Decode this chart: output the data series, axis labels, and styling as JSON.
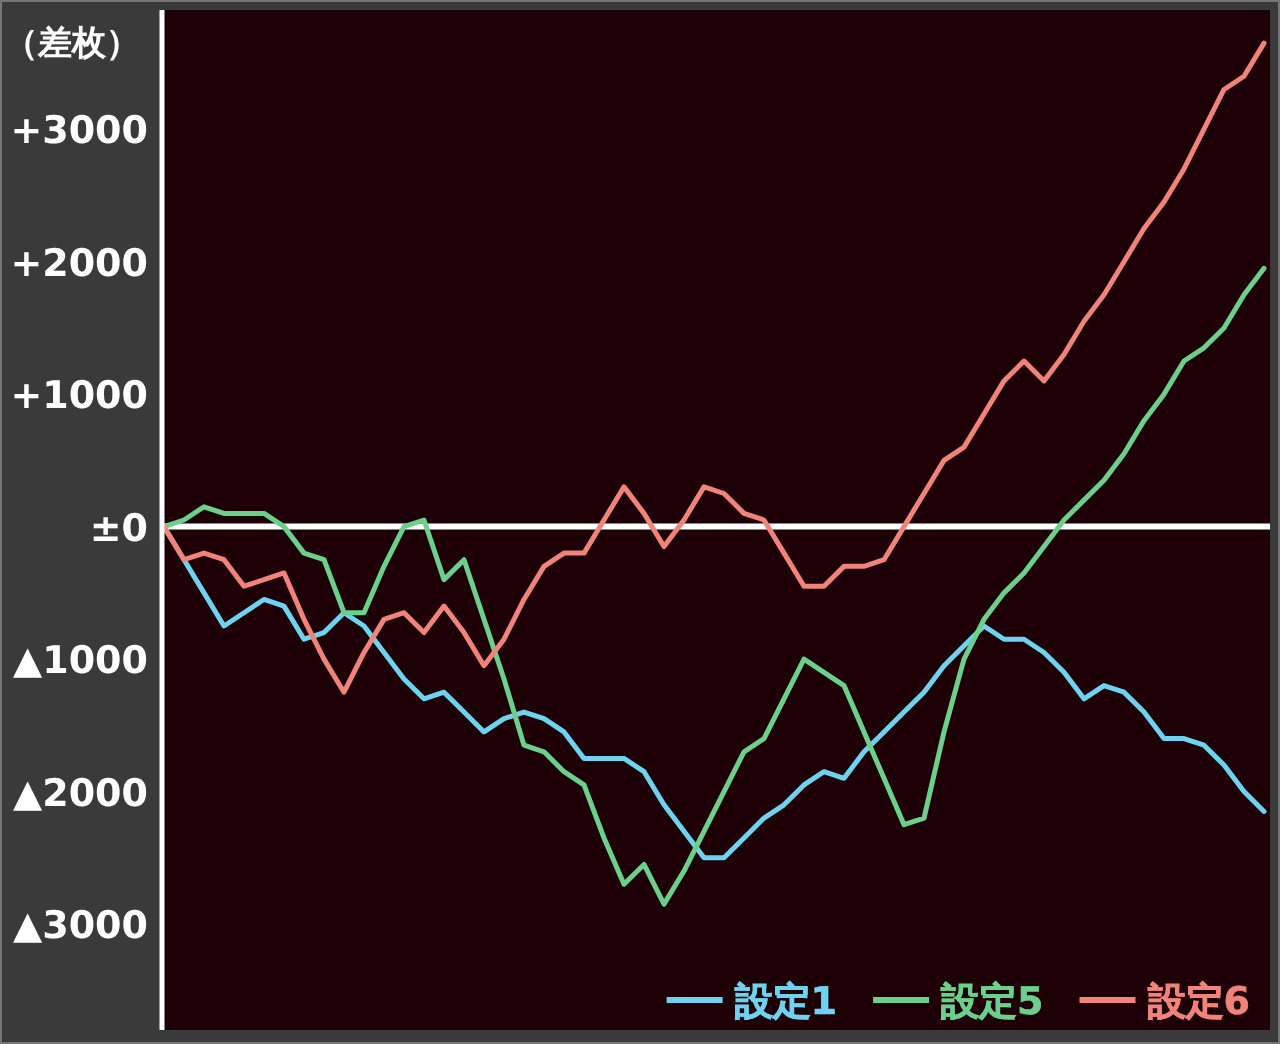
{
  "chart_data": {
    "type": "line",
    "ylabel": "（差枚）",
    "categories": [
      null,
      null,
      null,
      null,
      null,
      null,
      null,
      null,
      null,
      null,
      null,
      null,
      null,
      null,
      null,
      null,
      null,
      null,
      null,
      null,
      null,
      null,
      null,
      null,
      null,
      null,
      null,
      null,
      null,
      null,
      null,
      null,
      null,
      null,
      null,
      null,
      null,
      null,
      null,
      null,
      null,
      null,
      null,
      null,
      null,
      null,
      null,
      null,
      null,
      null,
      null,
      null,
      null,
      null,
      null,
      null
    ],
    "series": [
      {
        "name": "設定1",
        "color": "#6fd3f0",
        "values": [
          0,
          -250,
          -500,
          -750,
          -650,
          -550,
          -600,
          -850,
          -800,
          -650,
          -750,
          -950,
          -1150,
          -1300,
          -1250,
          -1400,
          -1550,
          -1450,
          -1400,
          -1450,
          -1550,
          -1750,
          -1750,
          -1750,
          -1850,
          -2100,
          -2300,
          -2500,
          -2500,
          -2350,
          -2200,
          -2100,
          -1950,
          -1850,
          -1900,
          -1700,
          -1550,
          -1400,
          -1250,
          -1050,
          -900,
          -750,
          -850,
          -850,
          -950,
          -1100,
          -1300,
          -1200,
          -1250,
          -1400,
          -1600,
          -1600,
          -1650,
          -1800,
          -2000,
          -2150
        ]
      },
      {
        "name": "設定5",
        "color": "#6dd08a",
        "values": [
          0,
          50,
          150,
          100,
          100,
          100,
          0,
          -200,
          -250,
          -650,
          -650,
          -300,
          0,
          50,
          -400,
          -250,
          -700,
          -1150,
          -1650,
          -1700,
          -1850,
          -1950,
          -2350,
          -2700,
          -2550,
          -2850,
          -2600,
          -2300,
          -2000,
          -1700,
          -1600,
          -1300,
          -1000,
          -1100,
          -1200,
          -1550,
          -1900,
          -2250,
          -2200,
          -1550,
          -1000,
          -700,
          -500,
          -350,
          -150,
          50,
          200,
          350,
          550,
          800,
          1000,
          1250,
          1350,
          1500,
          1750,
          1950
        ]
      },
      {
        "name": "設定6",
        "color": "#f0837a",
        "values": [
          0,
          -250,
          -200,
          -250,
          -450,
          -400,
          -350,
          -700,
          -1000,
          -1250,
          -950,
          -700,
          -650,
          -800,
          -600,
          -800,
          -1050,
          -850,
          -550,
          -300,
          -200,
          -200,
          50,
          300,
          100,
          -150,
          50,
          300,
          250,
          100,
          50,
          -200,
          -450,
          -450,
          -300,
          -300,
          -250,
          0,
          250,
          500,
          600,
          850,
          1100,
          1250,
          1100,
          1300,
          1550,
          1750,
          2000,
          2250,
          2450,
          2700,
          3000,
          3300,
          3400,
          3650
        ]
      }
    ],
    "ylim": [
      -3800,
      3900
    ],
    "yticks": [
      {
        "value": 3000,
        "label": "+3000"
      },
      {
        "value": 2000,
        "label": "+2000"
      },
      {
        "value": 1000,
        "label": "+1000"
      },
      {
        "value": 0,
        "label": "±0"
      },
      {
        "value": -1000,
        "label": "▲1000"
      },
      {
        "value": -2000,
        "label": "▲2000"
      },
      {
        "value": -3000,
        "label": "▲3000"
      }
    ],
    "ref_lines": [
      {
        "axis": "y",
        "value": 0,
        "color": "#ffffff"
      }
    ],
    "tick_labels": "y",
    "legend": "bottom right"
  }
}
